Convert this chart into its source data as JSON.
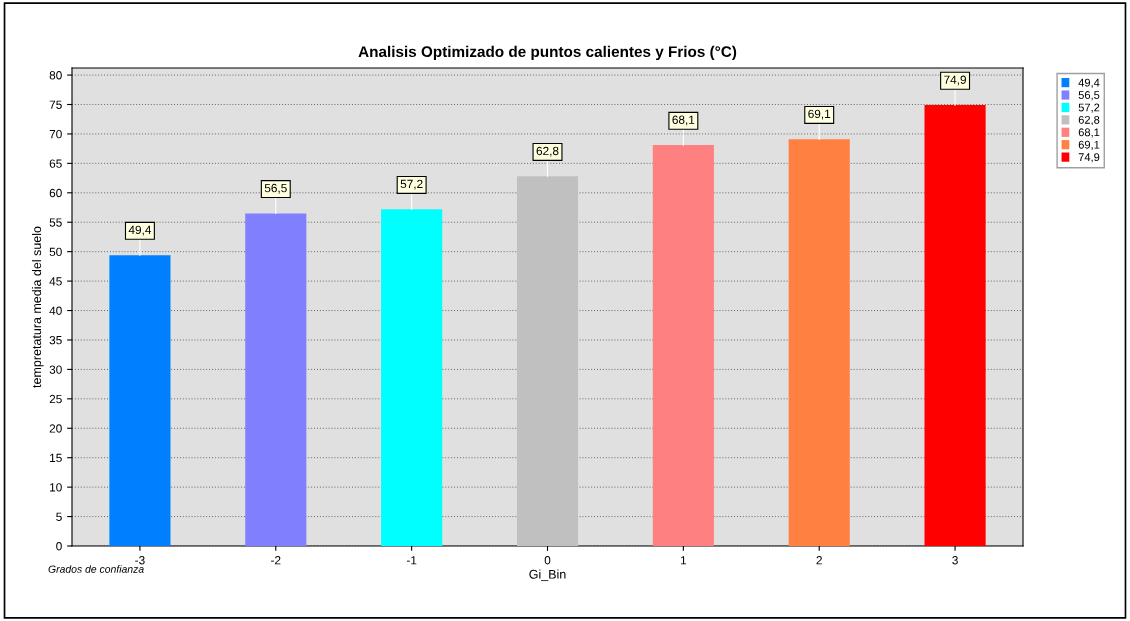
{
  "chart_data": {
    "type": "bar",
    "title": "Analisis Optimizado de puntos calientes y Frios (°C)",
    "xlabel": "Gi_Bin",
    "ylabel": "tempretatura media del suelo",
    "categories": [
      "-3",
      "-2",
      "-1",
      "0",
      "1",
      "2",
      "3"
    ],
    "series": [
      {
        "name": "49,4",
        "color": "#0080ff",
        "values": [
          49.4,
          null,
          null,
          null,
          null,
          null,
          null
        ],
        "value_labels": [
          "49,4",
          null,
          null,
          null,
          null,
          null,
          null
        ]
      },
      {
        "name": "56,5",
        "color": "#8080ff",
        "values": [
          null,
          56.5,
          null,
          null,
          null,
          null,
          null
        ],
        "value_labels": [
          null,
          "56,5",
          null,
          null,
          null,
          null,
          null
        ]
      },
      {
        "name": "57,2",
        "color": "#00ffff",
        "values": [
          null,
          null,
          57.2,
          null,
          null,
          null,
          null
        ],
        "value_labels": [
          null,
          null,
          "57,2",
          null,
          null,
          null,
          null
        ]
      },
      {
        "name": "62,8",
        "color": "#c0c0c0",
        "values": [
          null,
          null,
          null,
          62.8,
          null,
          null,
          null
        ],
        "value_labels": [
          null,
          null,
          null,
          "62,8",
          null,
          null,
          null
        ]
      },
      {
        "name": "68,1",
        "color": "#ff8080",
        "values": [
          null,
          null,
          null,
          null,
          68.1,
          null,
          null
        ],
        "value_labels": [
          null,
          null,
          null,
          null,
          "68,1",
          null,
          null
        ]
      },
      {
        "name": "69,1",
        "color": "#ff8040",
        "values": [
          null,
          null,
          null,
          null,
          null,
          69.1,
          null
        ],
        "value_labels": [
          null,
          null,
          null,
          null,
          null,
          "69,1",
          null
        ]
      },
      {
        "name": "74,9",
        "color": "#ff0000",
        "values": [
          null,
          null,
          null,
          null,
          null,
          null,
          74.9
        ],
        "value_labels": [
          null,
          null,
          null,
          null,
          null,
          null,
          "74,9"
        ]
      }
    ],
    "ylim": [
      0,
      81.2
    ],
    "yticks": [
      0,
      5,
      10,
      15,
      20,
      25,
      30,
      35,
      40,
      45,
      50,
      55,
      60,
      65,
      70,
      75,
      80
    ],
    "grid": "y",
    "legend": "top right",
    "annotations": [
      "Grados de confianza"
    ]
  }
}
